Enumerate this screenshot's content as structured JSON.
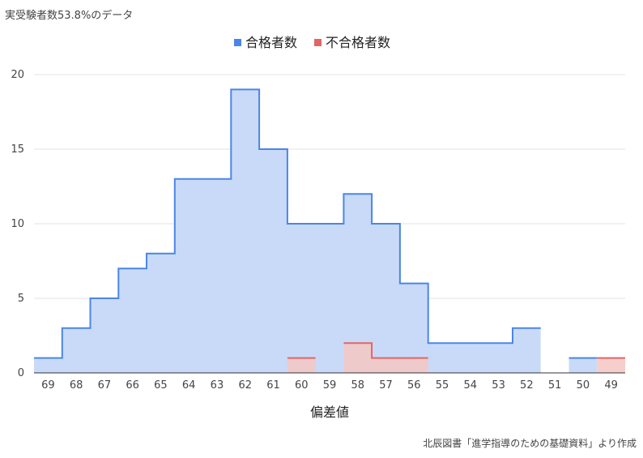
{
  "subtitle": "実受験者数53.8%のデータ",
  "source": "北辰図書「進学指導のための基礎資料」より作成",
  "chart_data": {
    "type": "area",
    "stepped": true,
    "categories": [
      "69",
      "68",
      "67",
      "66",
      "65",
      "64",
      "63",
      "62",
      "61",
      "60",
      "59",
      "58",
      "57",
      "56",
      "55",
      "54",
      "53",
      "52",
      "51",
      "50",
      "49"
    ],
    "series": [
      {
        "name": "合格者数",
        "color": "#4a86e8",
        "fill": "#c9daf8",
        "values": [
          1,
          3,
          5,
          7,
          8,
          13,
          13,
          19,
          15,
          10,
          10,
          12,
          10,
          6,
          2,
          2,
          2,
          3,
          null,
          1,
          null
        ]
      },
      {
        "name": "不合格者数",
        "color": "#e06666",
        "fill": "#f4c7c3",
        "values": [
          null,
          null,
          null,
          null,
          null,
          null,
          null,
          null,
          null,
          1,
          null,
          2,
          1,
          1,
          null,
          null,
          null,
          null,
          null,
          null,
          1
        ]
      }
    ],
    "xlabel": "偏差値",
    "ylabel": "",
    "ylim": [
      0,
      20
    ],
    "yticks": [
      "0",
      "5",
      "10",
      "15",
      "20"
    ],
    "grid": true,
    "legend_position": "top-center"
  }
}
